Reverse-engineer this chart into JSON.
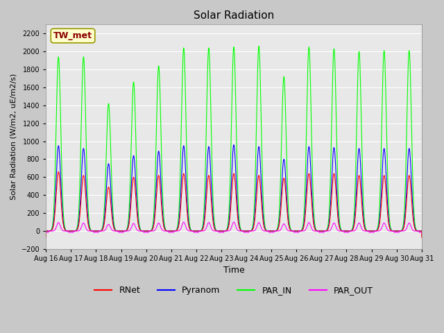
{
  "title": "Solar Radiation",
  "ylabel": "Solar Radiation (W/m2, uE/m2/s)",
  "xlabel": "Time",
  "ylim": [
    -200,
    2300
  ],
  "yticks": [
    -200,
    0,
    200,
    400,
    600,
    800,
    1000,
    1200,
    1400,
    1600,
    1800,
    2000,
    2200
  ],
  "start_day": 16,
  "end_day": 31,
  "n_days": 15,
  "colors": {
    "RNet": "#ff0000",
    "Pyranom": "#0000ff",
    "PAR_IN": "#00ff00",
    "PAR_OUT": "#ff00ff"
  },
  "legend_label": "TW_met",
  "fig_bg": "#c8c8c8",
  "plot_bg": "#e8e8e8",
  "peaks_PAR_IN": [
    1940,
    1940,
    1420,
    1660,
    1840,
    2040,
    2040,
    2050,
    2060,
    1720,
    2050,
    2030,
    2000,
    2010,
    2010
  ],
  "peaks_Pyranom": [
    950,
    920,
    750,
    840,
    890,
    950,
    940,
    960,
    940,
    800,
    940,
    930,
    920,
    920,
    920
  ],
  "peaks_RNet": [
    660,
    620,
    490,
    600,
    620,
    640,
    620,
    640,
    620,
    590,
    640,
    640,
    620,
    620,
    620
  ],
  "peaks_PAR_OUT": [
    95,
    90,
    75,
    85,
    90,
    100,
    95,
    100,
    95,
    80,
    95,
    90,
    90,
    90,
    90
  ],
  "night_RNet": -70,
  "night_PAR_OUT": -15,
  "night_PAR_IN": 0,
  "night_Pyranom": 0,
  "pts_per_day": 288,
  "figsize": [
    6.4,
    4.8
  ],
  "dpi": 100
}
